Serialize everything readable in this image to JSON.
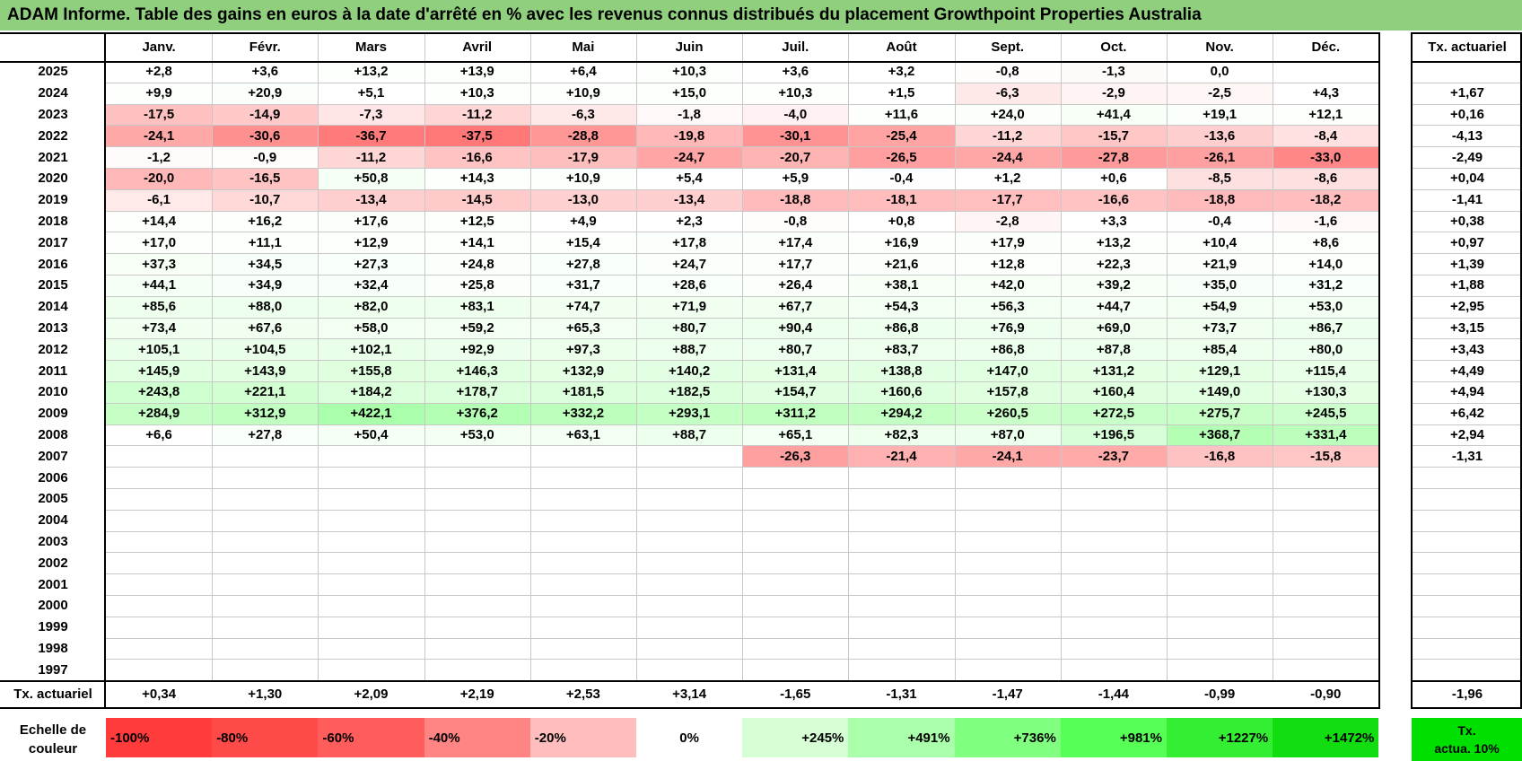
{
  "title": "ADAM Informe. Table des gains en euros à la date d'arrêté en % avec les revenus connus distribués du placement Growthpoint Properties Australia",
  "chart_data": {
    "type": "heatmap",
    "title": "ADAM Informe. Table des gains en euros à la date d'arrêté en % avec les revenus connus distribués du placement Growthpoint Properties Australia",
    "columns": [
      "Janv.",
      "Févr.",
      "Mars",
      "Avril",
      "Mai",
      "Juin",
      "Juil.",
      "Août",
      "Sept.",
      "Oct.",
      "Nov.",
      "Déc."
    ],
    "annual_header": "Tx. actuariel",
    "rows": [
      {
        "year": "2025",
        "values": [
          "+2,8",
          "+3,6",
          "+13,2",
          "+13,9",
          "+6,4",
          "+10,3",
          "+3,6",
          "+3,2",
          "-0,8",
          "-1,3",
          "0,0",
          ""
        ],
        "rate": ""
      },
      {
        "year": "2024",
        "values": [
          "+9,9",
          "+20,9",
          "+5,1",
          "+10,3",
          "+10,9",
          "+15,0",
          "+10,3",
          "+1,5",
          "-6,3",
          "-2,9",
          "-2,5",
          "+4,3"
        ],
        "rate": "+1,67"
      },
      {
        "year": "2023",
        "values": [
          "-17,5",
          "-14,9",
          "-7,3",
          "-11,2",
          "-6,3",
          "-1,8",
          "-4,0",
          "+11,6",
          "+24,0",
          "+41,4",
          "+19,1",
          "+12,1"
        ],
        "rate": "+0,16"
      },
      {
        "year": "2022",
        "values": [
          "-24,1",
          "-30,6",
          "-36,7",
          "-37,5",
          "-28,8",
          "-19,8",
          "-30,1",
          "-25,4",
          "-11,2",
          "-15,7",
          "-13,6",
          "-8,4"
        ],
        "rate": "-4,13"
      },
      {
        "year": "2021",
        "values": [
          "-1,2",
          "-0,9",
          "-11,2",
          "-16,6",
          "-17,9",
          "-24,7",
          "-20,7",
          "-26,5",
          "-24,4",
          "-27,8",
          "-26,1",
          "-33,0"
        ],
        "rate": "-2,49"
      },
      {
        "year": "2020",
        "values": [
          "-20,0",
          "-16,5",
          "+50,8",
          "+14,3",
          "+10,9",
          "+5,4",
          "+5,9",
          "-0,4",
          "+1,2",
          "+0,6",
          "-8,5",
          "-8,6"
        ],
        "rate": "+0,04"
      },
      {
        "year": "2019",
        "values": [
          "-6,1",
          "-10,7",
          "-13,4",
          "-14,5",
          "-13,0",
          "-13,4",
          "-18,8",
          "-18,1",
          "-17,7",
          "-16,6",
          "-18,8",
          "-18,2"
        ],
        "rate": "-1,41"
      },
      {
        "year": "2018",
        "values": [
          "+14,4",
          "+16,2",
          "+17,6",
          "+12,5",
          "+4,9",
          "+2,3",
          "-0,8",
          "+0,8",
          "-2,8",
          "+3,3",
          "-0,4",
          "-1,6"
        ],
        "rate": "+0,38"
      },
      {
        "year": "2017",
        "values": [
          "+17,0",
          "+11,1",
          "+12,9",
          "+14,1",
          "+15,4",
          "+17,8",
          "+17,4",
          "+16,9",
          "+17,9",
          "+13,2",
          "+10,4",
          "+8,6"
        ],
        "rate": "+0,97"
      },
      {
        "year": "2016",
        "values": [
          "+37,3",
          "+34,5",
          "+27,3",
          "+24,8",
          "+27,8",
          "+24,7",
          "+17,7",
          "+21,6",
          "+12,8",
          "+22,3",
          "+21,9",
          "+14,0"
        ],
        "rate": "+1,39"
      },
      {
        "year": "2015",
        "values": [
          "+44,1",
          "+34,9",
          "+32,4",
          "+25,8",
          "+31,7",
          "+28,6",
          "+26,4",
          "+38,1",
          "+42,0",
          "+39,2",
          "+35,0",
          "+31,2"
        ],
        "rate": "+1,88"
      },
      {
        "year": "2014",
        "values": [
          "+85,6",
          "+88,0",
          "+82,0",
          "+83,1",
          "+74,7",
          "+71,9",
          "+67,7",
          "+54,3",
          "+56,3",
          "+44,7",
          "+54,9",
          "+53,0"
        ],
        "rate": "+2,95"
      },
      {
        "year": "2013",
        "values": [
          "+73,4",
          "+67,6",
          "+58,0",
          "+59,2",
          "+65,3",
          "+80,7",
          "+90,4",
          "+86,8",
          "+76,9",
          "+69,0",
          "+73,7",
          "+86,7"
        ],
        "rate": "+3,15"
      },
      {
        "year": "2012",
        "values": [
          "+105,1",
          "+104,5",
          "+102,1",
          "+92,9",
          "+97,3",
          "+88,7",
          "+80,7",
          "+83,7",
          "+86,8",
          "+87,8",
          "+85,4",
          "+80,0"
        ],
        "rate": "+3,43"
      },
      {
        "year": "2011",
        "values": [
          "+145,9",
          "+143,9",
          "+155,8",
          "+146,3",
          "+132,9",
          "+140,2",
          "+131,4",
          "+138,8",
          "+147,0",
          "+131,2",
          "+129,1",
          "+115,4"
        ],
        "rate": "+4,49"
      },
      {
        "year": "2010",
        "values": [
          "+243,8",
          "+221,1",
          "+184,2",
          "+178,7",
          "+181,5",
          "+182,5",
          "+154,7",
          "+160,6",
          "+157,8",
          "+160,4",
          "+149,0",
          "+130,3"
        ],
        "rate": "+4,94"
      },
      {
        "year": "2009",
        "values": [
          "+284,9",
          "+312,9",
          "+422,1",
          "+376,2",
          "+332,2",
          "+293,1",
          "+311,2",
          "+294,2",
          "+260,5",
          "+272,5",
          "+275,7",
          "+245,5"
        ],
        "rate": "+6,42"
      },
      {
        "year": "2008",
        "values": [
          "+6,6",
          "+27,8",
          "+50,4",
          "+53,0",
          "+63,1",
          "+88,7",
          "+65,1",
          "+82,3",
          "+87,0",
          "+196,5",
          "+368,7",
          "+331,4"
        ],
        "rate": "+2,94"
      },
      {
        "year": "2007",
        "values": [
          "",
          "",
          "",
          "",
          "",
          "",
          "-26,3",
          "-21,4",
          "-24,1",
          "-23,7",
          "-16,8",
          "-15,8"
        ],
        "rate": "-1,31"
      },
      {
        "year": "2006",
        "values": [
          "",
          "",
          "",
          "",
          "",
          "",
          "",
          "",
          "",
          "",
          "",
          ""
        ],
        "rate": ""
      },
      {
        "year": "2005",
        "values": [
          "",
          "",
          "",
          "",
          "",
          "",
          "",
          "",
          "",
          "",
          "",
          ""
        ],
        "rate": ""
      },
      {
        "year": "2004",
        "values": [
          "",
          "",
          "",
          "",
          "",
          "",
          "",
          "",
          "",
          "",
          "",
          ""
        ],
        "rate": ""
      },
      {
        "year": "2003",
        "values": [
          "",
          "",
          "",
          "",
          "",
          "",
          "",
          "",
          "",
          "",
          "",
          ""
        ],
        "rate": ""
      },
      {
        "year": "2002",
        "values": [
          "",
          "",
          "",
          "",
          "",
          "",
          "",
          "",
          "",
          "",
          "",
          ""
        ],
        "rate": ""
      },
      {
        "year": "2001",
        "values": [
          "",
          "",
          "",
          "",
          "",
          "",
          "",
          "",
          "",
          "",
          "",
          ""
        ],
        "rate": ""
      },
      {
        "year": "2000",
        "values": [
          "",
          "",
          "",
          "",
          "",
          "",
          "",
          "",
          "",
          "",
          "",
          ""
        ],
        "rate": ""
      },
      {
        "year": "1999",
        "values": [
          "",
          "",
          "",
          "",
          "",
          "",
          "",
          "",
          "",
          "",
          "",
          ""
        ],
        "rate": ""
      },
      {
        "year": "1998",
        "values": [
          "",
          "",
          "",
          "",
          "",
          "",
          "",
          "",
          "",
          "",
          "",
          ""
        ],
        "rate": ""
      },
      {
        "year": "1997",
        "values": [
          "",
          "",
          "",
          "",
          "",
          "",
          "",
          "",
          "",
          "",
          "",
          ""
        ],
        "rate": ""
      }
    ],
    "footer": {
      "label": "Tx. actuariel",
      "values": [
        "+0,34",
        "+1,30",
        "+2,09",
        "+2,19",
        "+2,53",
        "+3,14",
        "-1,65",
        "-1,31",
        "-1,47",
        "-1,44",
        "-0,99",
        "-0,90"
      ],
      "total": "-1,96"
    },
    "color_scale": {
      "label_line1": "Echelle de",
      "label_line2": "couleur",
      "stops": [
        {
          "label": "-100%",
          "value": -100,
          "color": "#ff3b3b"
        },
        {
          "label": "-80%",
          "value": -80,
          "color": "#ff4a4a"
        },
        {
          "label": "-60%",
          "value": -60,
          "color": "#ff5c5c"
        },
        {
          "label": "-40%",
          "value": -40,
          "color": "#ff8484"
        },
        {
          "label": "-20%",
          "value": -20,
          "color": "#ffbdbd"
        },
        {
          "label": "0%",
          "value": 0,
          "color": "#ffffff"
        },
        {
          "label": "+245%",
          "value": 245,
          "color": "#d6ffd6"
        },
        {
          "label": "+491%",
          "value": 491,
          "color": "#aaffaa"
        },
        {
          "label": "+736%",
          "value": 736,
          "color": "#80ff80"
        },
        {
          "label": "+981%",
          "value": 981,
          "color": "#55ff55"
        },
        {
          "label": "+1227%",
          "value": 1227,
          "color": "#33ee33"
        },
        {
          "label": "+1472%",
          "value": 1472,
          "color": "#11dd11"
        }
      ],
      "actua_line1": "Tx.",
      "actua_line2": "actua. 10%",
      "actua_color": "#00e000"
    }
  }
}
